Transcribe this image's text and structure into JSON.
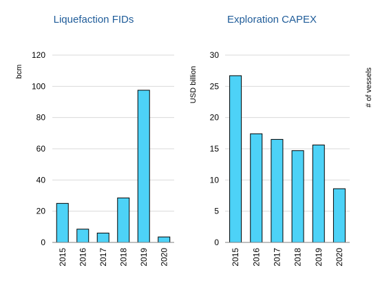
{
  "chart_data": [
    {
      "type": "bar",
      "title": "Liquefaction FIDs",
      "ylabel": "bcm",
      "categories": [
        "2015",
        "2016",
        "2017",
        "2018",
        "2019",
        "2020"
      ],
      "values": [
        25,
        8.5,
        6,
        28.5,
        97.5,
        3.5
      ],
      "ylim": [
        0,
        120
      ],
      "yticks": [
        0,
        20,
        40,
        60,
        80,
        100,
        120
      ],
      "grid": true,
      "bar_color": "#4dd2f7"
    },
    {
      "type": "bar",
      "title": "Exploration CAPEX",
      "ylabel": "USD billion",
      "y2label": "# of vessels",
      "categories": [
        "2015",
        "2016",
        "2017",
        "2018",
        "2019",
        "2020"
      ],
      "values": [
        26.7,
        17.4,
        16.5,
        14.7,
        15.6,
        8.6
      ],
      "ylim": [
        0,
        30
      ],
      "yticks": [
        0,
        5,
        10,
        15,
        20,
        25,
        30
      ],
      "grid": true,
      "bar_color": "#4dd2f7"
    }
  ]
}
